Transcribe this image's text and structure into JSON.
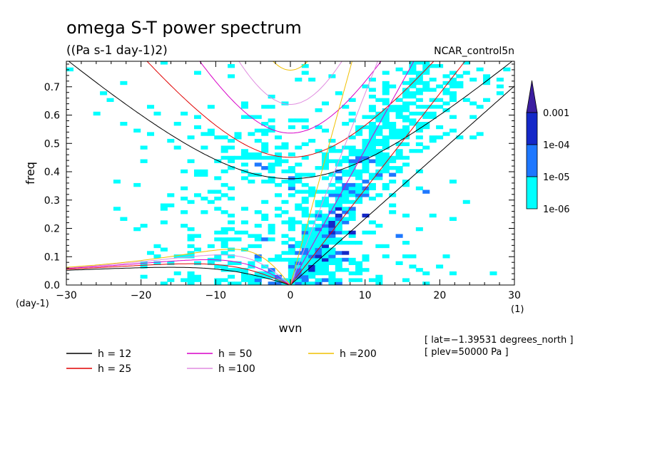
{
  "chart_data": {
    "type": "contour",
    "title": "omega S-T power spectrum",
    "subtitle": "((Pa s-1 day-1)2)",
    "run_label": "NCAR_control5n",
    "xlabel": "wvn",
    "ylabel": "freq",
    "x_units": "(1)",
    "y_units": "(day-1)",
    "xlim": [
      -30,
      30
    ],
    "ylim": [
      0,
      0.79
    ],
    "xticks": [
      -30,
      -20,
      -10,
      0,
      10,
      20,
      30
    ],
    "xtick_labels": [
      "−30",
      "−20",
      "−10",
      "0",
      "10",
      "20",
      "30"
    ],
    "yticks": [
      0,
      0.1,
      0.2,
      0.3,
      0.4,
      0.5,
      0.6,
      0.7
    ],
    "ytick_labels": [
      "0.0",
      "0.1",
      "0.2",
      "0.3",
      "0.4",
      "0.5",
      "0.6",
      "0.7"
    ],
    "colorbar": {
      "levels": [
        "1e-06",
        "1e-05",
        "1e-04",
        "0.001"
      ],
      "colors": [
        "#00ffff",
        "#1e78ff",
        "#1428c8",
        "#3c1ea0"
      ]
    },
    "dispersion_curves": [
      {
        "name": "h = 12",
        "h": 12,
        "color": "#000000"
      },
      {
        "name": "h = 25",
        "h": 25,
        "color": "#e00000"
      },
      {
        "name": "h = 50",
        "h": 50,
        "color": "#d800c8"
      },
      {
        "name": "h =100",
        "h": 100,
        "color": "#e08ce0"
      },
      {
        "name": "h =200",
        "h": 200,
        "color": "#f0c000"
      }
    ],
    "annotations": [
      "[ lat=−1.39531 degrees_north ]",
      "[ plev=50000 Pa ]"
    ]
  }
}
